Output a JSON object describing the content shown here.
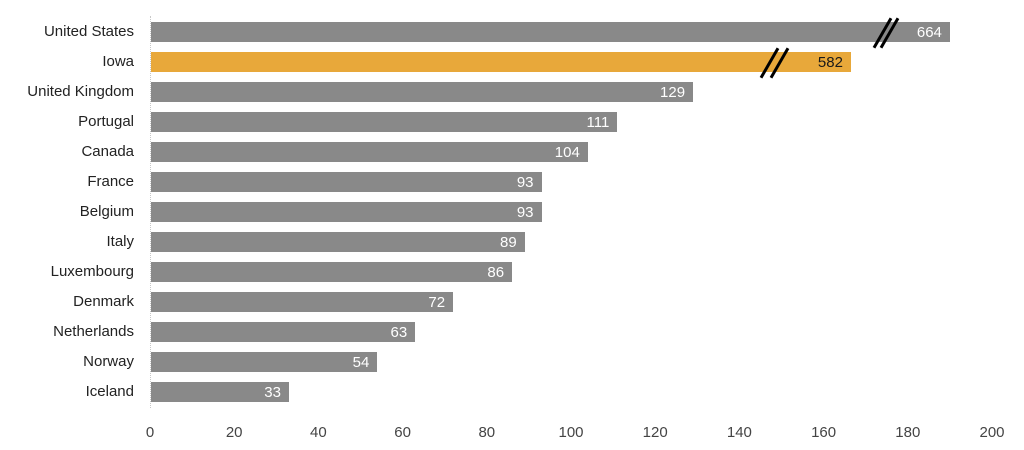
{
  "chart_data": {
    "type": "bar",
    "orientation": "horizontal",
    "title": "",
    "xlabel": "",
    "ylabel": "",
    "xlim": [
      0,
      200
    ],
    "axis_break": true,
    "categories": [
      "United States",
      "Iowa",
      "United Kingdom",
      "Portugal",
      "Canada",
      "France",
      "Belgium",
      "Italy",
      "Luxembourg",
      "Denmark",
      "Netherlands",
      "Norway",
      "Iceland"
    ],
    "values": [
      664,
      582,
      129,
      111,
      104,
      93,
      93,
      89,
      86,
      72,
      63,
      54,
      33
    ],
    "display_lengths": [
      190,
      166.5,
      129,
      111,
      104,
      93,
      93,
      89,
      86,
      72,
      63,
      54,
      33
    ],
    "highlight": "Iowa",
    "ticks": [
      "0",
      "20",
      "40",
      "60",
      "80",
      "100",
      "120",
      "140",
      "160",
      "180",
      "200"
    ],
    "colors": {
      "default": "#898989",
      "highlight": "#e8a83a"
    }
  }
}
